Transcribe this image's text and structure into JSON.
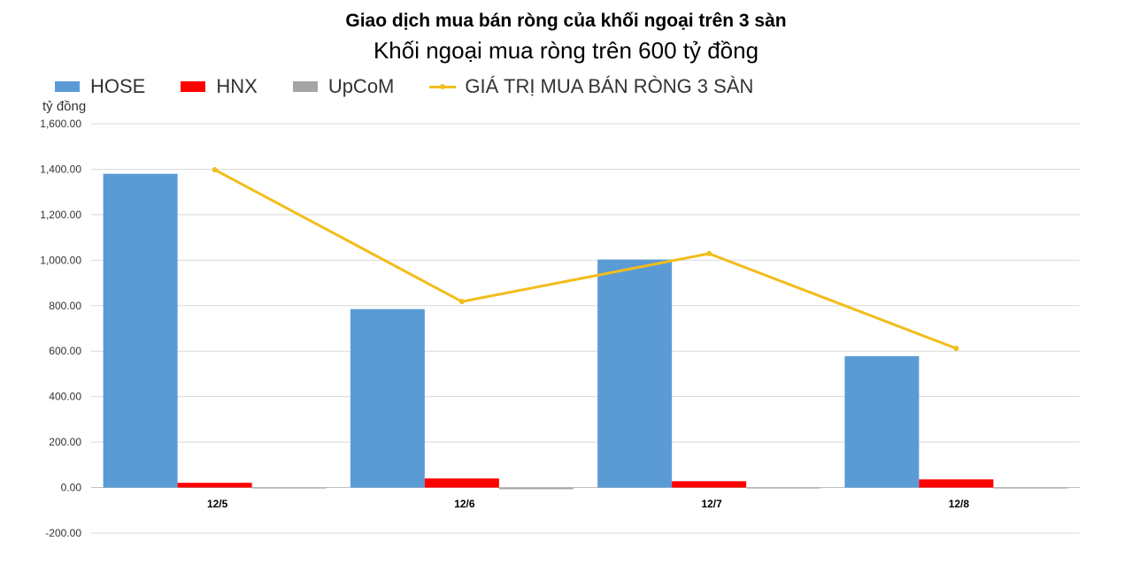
{
  "chart_data": {
    "type": "bar",
    "title": "Giao dịch mua bán ròng của khối ngoại trên 3 sàn",
    "subtitle": "Khối ngoại mua ròng trên 600 tỷ đồng",
    "ylabel": "tỷ đồng",
    "categories": [
      "12/5",
      "12/6",
      "12/7",
      "12/8"
    ],
    "series": [
      {
        "name": "HOSE",
        "type": "bar",
        "color": "#5b9bd5",
        "values": [
          1380,
          785,
          1003,
          578
        ]
      },
      {
        "name": "HNX",
        "type": "bar",
        "color": "#ff0000",
        "values": [
          21,
          40,
          28,
          36
        ]
      },
      {
        "name": "UpCoM",
        "type": "bar",
        "color": "#a5a5a5",
        "values": [
          -3,
          -7,
          -2,
          -2
        ]
      },
      {
        "name": "GIÁ TRỊ MUA BÁN RÒNG 3 SÀN",
        "type": "line",
        "color": "#f2bd1a",
        "values": [
          1398,
          818,
          1029,
          612
        ]
      }
    ],
    "ylim": [
      -200,
      1600
    ],
    "yticks": [
      "-200.00",
      "0.00",
      "200.00",
      "400.00",
      "600.00",
      "800.00",
      "1,000.00",
      "1,200.00",
      "1,400.00",
      "1,600.00"
    ],
    "ytick_values": [
      -200,
      0,
      200,
      400,
      600,
      800,
      1000,
      1200,
      1400,
      1600
    ],
    "grid": true,
    "legend": "top-left"
  }
}
